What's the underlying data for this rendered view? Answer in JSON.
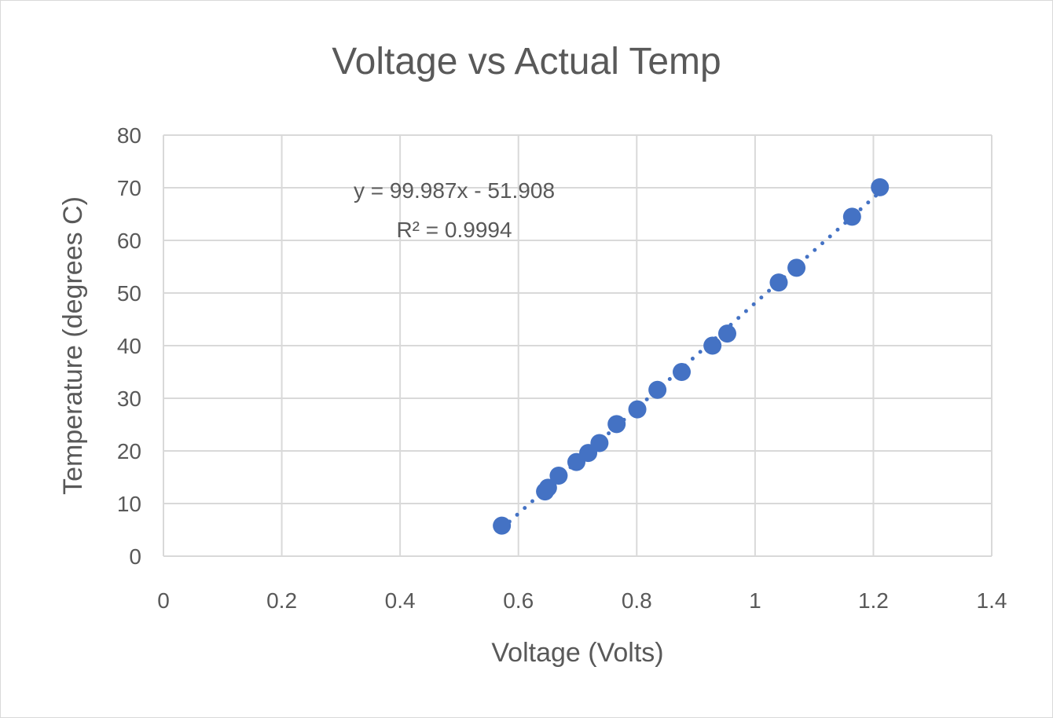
{
  "chart_data": {
    "type": "scatter",
    "title": "Voltage vs Actual Temp",
    "xlabel": "Voltage (Volts)",
    "ylabel": "Temperature (degrees C)",
    "xlim": [
      0,
      1.4
    ],
    "ylim": [
      0,
      80
    ],
    "x_ticks": [
      "0",
      "0.2",
      "0.4",
      "0.6",
      "0.8",
      "1",
      "1.2",
      "1.4"
    ],
    "y_ticks": [
      "0",
      "10",
      "20",
      "30",
      "40",
      "50",
      "60",
      "70",
      "80"
    ],
    "grid": true,
    "legend": "none",
    "series": [
      {
        "color": "#4472C4",
        "points": [
          {
            "x": 0.572,
            "y": 5.8
          },
          {
            "x": 0.645,
            "y": 12.3
          },
          {
            "x": 0.65,
            "y": 13.0
          },
          {
            "x": 0.668,
            "y": 15.3
          },
          {
            "x": 0.698,
            "y": 17.9
          },
          {
            "x": 0.718,
            "y": 19.6
          },
          {
            "x": 0.737,
            "y": 21.5
          },
          {
            "x": 0.766,
            "y": 25.1
          },
          {
            "x": 0.801,
            "y": 27.9
          },
          {
            "x": 0.835,
            "y": 31.6
          },
          {
            "x": 0.876,
            "y": 35.0
          },
          {
            "x": 0.928,
            "y": 40.0
          },
          {
            "x": 0.953,
            "y": 42.3
          },
          {
            "x": 1.04,
            "y": 52.0
          },
          {
            "x": 1.07,
            "y": 54.8
          },
          {
            "x": 1.164,
            "y": 64.5
          },
          {
            "x": 1.211,
            "y": 70.1
          }
        ]
      }
    ],
    "trendline": {
      "type": "linear",
      "style": "dotted",
      "color": "#4472C4",
      "slope": 99.987,
      "intercept": -51.908,
      "equation_label": "y = 99.987x - 51.908",
      "r2_label": "R² = 0.9994"
    }
  }
}
